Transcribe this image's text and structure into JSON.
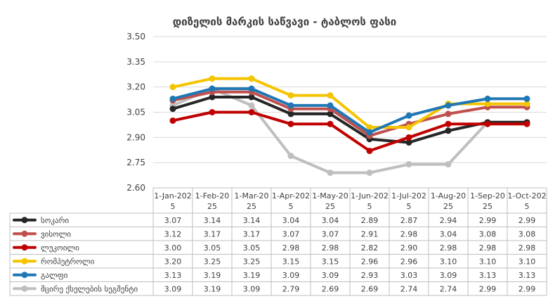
{
  "chart_data": {
    "type": "line",
    "title": "დიზელის მარკის საწვავი - ტაბლოს ფასი",
    "xlabel": "",
    "ylabel": "",
    "categories": [
      [
        "1-Jan-202",
        "5"
      ],
      [
        "1-Feb-20",
        "25"
      ],
      [
        "1-Mar-20",
        "25"
      ],
      [
        "1-Apr-202",
        "5"
      ],
      [
        "1-May-20",
        "25"
      ],
      [
        "1-Jun-202",
        "5"
      ],
      [
        "1-Jul-202",
        "5"
      ],
      [
        "1-Aug-20",
        "25"
      ],
      [
        "1-Sep-20",
        "25"
      ],
      [
        "1-Oct-202",
        "5"
      ]
    ],
    "ylim": [
      2.6,
      3.5
    ],
    "yticks": [
      "3.50",
      "3.35",
      "3.20",
      "3.05",
      "2.90",
      "2.75",
      "2.60"
    ],
    "grid": true,
    "legend": "data-table",
    "series": [
      {
        "name": "სოკარი",
        "color": "#262626",
        "values": [
          3.07,
          3.14,
          3.14,
          3.04,
          3.04,
          2.89,
          2.87,
          2.94,
          2.99,
          2.99
        ],
        "labels": [
          "3.07",
          "3.14",
          "3.14",
          "3.04",
          "3.04",
          "2.89",
          "2.87",
          "2.94",
          "2.99",
          "2.99"
        ]
      },
      {
        "name": "ვისოლი",
        "color": "#c0504d",
        "values": [
          3.12,
          3.17,
          3.17,
          3.07,
          3.07,
          2.91,
          2.98,
          3.04,
          3.08,
          3.08
        ],
        "labels": [
          "3.12",
          "3.17",
          "3.17",
          "3.07",
          "3.07",
          "2.91",
          "2.98",
          "3.04",
          "3.08",
          "3.08"
        ]
      },
      {
        "name": "ლუკოილი",
        "color": "#c00000",
        "values": [
          3.0,
          3.05,
          3.05,
          2.98,
          2.98,
          2.82,
          2.9,
          2.98,
          2.98,
          2.98
        ],
        "labels": [
          "3.00",
          "3.05",
          "3.05",
          "2.98",
          "2.98",
          "2.82",
          "2.90",
          "2.98",
          "2.98",
          "2.98"
        ]
      },
      {
        "name": "რომპეტროლი",
        "color": "#f5c400",
        "values": [
          3.2,
          3.25,
          3.25,
          3.15,
          3.15,
          2.96,
          2.96,
          3.1,
          3.1,
          3.1
        ],
        "labels": [
          "3.20",
          "3.25",
          "3.25",
          "3.15",
          "3.15",
          "2.96",
          "2.96",
          "3.10",
          "3.10",
          "3.10"
        ]
      },
      {
        "name": "გალფი",
        "color": "#1f77b4",
        "values": [
          3.13,
          3.19,
          3.19,
          3.09,
          3.09,
          2.93,
          3.03,
          3.09,
          3.13,
          3.13
        ],
        "labels": [
          "3.13",
          "3.19",
          "3.19",
          "3.09",
          "3.09",
          "2.93",
          "3.03",
          "3.09",
          "3.13",
          "3.13"
        ]
      },
      {
        "name": "მცირე ქსელების სეგმენტი",
        "color": "#bfbfbf",
        "values": [
          3.09,
          3.19,
          3.09,
          2.79,
          2.69,
          2.69,
          2.74,
          2.74,
          2.99,
          2.99
        ],
        "labels": [
          "3.09",
          "3.19",
          "3.09",
          "2.79",
          "2.69",
          "2.69",
          "2.74",
          "2.74",
          "2.99",
          "2.99"
        ]
      }
    ]
  }
}
